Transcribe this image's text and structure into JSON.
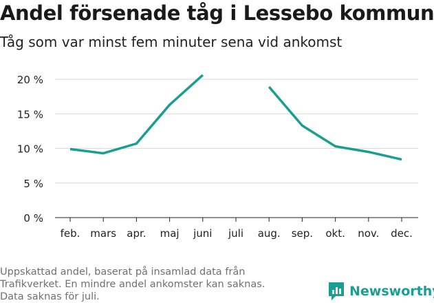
{
  "header": {
    "title": "Andel försenade tåg i Lessebo kommun",
    "subtitle": "Tåg som var minst fem minuter sena vid ankomst"
  },
  "footer": {
    "note_lines": [
      "Uppskattad andel, baserat på insamlad data från",
      "Trafikverket. En mindre andel ankomster kan saknas.",
      "Data saknas för juli."
    ],
    "brand_name": "Newsworthy",
    "brand_icon": "newsworthy-logo-icon",
    "brand_color": "#1b9e92"
  },
  "chart_data": {
    "type": "line",
    "categories": [
      "feb.",
      "mars",
      "apr.",
      "maj",
      "juni",
      "juli",
      "aug.",
      "sep.",
      "okt.",
      "nov.",
      "dec."
    ],
    "series": [
      {
        "values": [
          9.9,
          9.3,
          10.7,
          16.3,
          20.6,
          null,
          18.9,
          13.3,
          10.3,
          9.5,
          8.4
        ],
        "color": "#1b9e92"
      }
    ],
    "yticks": [
      0,
      5,
      10,
      15,
      20
    ],
    "ytick_labels": [
      "0 %",
      "5 %",
      "10 %",
      "15 %",
      "20 %"
    ],
    "ylim": [
      0,
      20
    ],
    "grid": true,
    "xlabel": "",
    "ylabel": "",
    "gridline_color": "#d9d9d9",
    "axis_color": "#222222"
  }
}
